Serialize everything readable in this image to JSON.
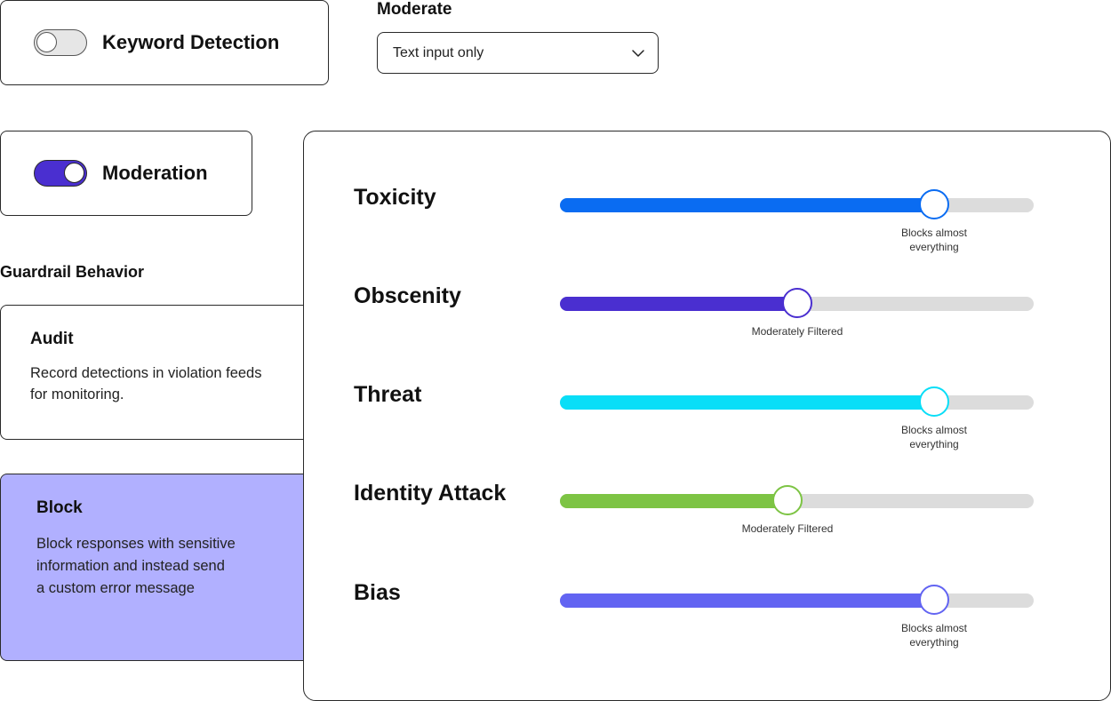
{
  "keyword_detection": {
    "label": "Keyword Detection",
    "enabled": false
  },
  "moderation_toggle": {
    "label": "Moderation",
    "enabled": true
  },
  "moderate": {
    "label": "Moderate",
    "selected": "Text input only"
  },
  "guardrail": {
    "heading": "Guardrail Behavior",
    "options": [
      {
        "title": "Audit",
        "description": "Record detections in violation feeds\nfor monitoring.",
        "selected": false
      },
      {
        "title": "Block",
        "description": "Block responses with sensitive\ninformation and instead send\na custom error message",
        "selected": true
      }
    ]
  },
  "moderation_sliders": [
    {
      "name": "Toxicity",
      "level": 0.79,
      "caption": "Blocks almost\neverything",
      "color": "#0a6cf2"
    },
    {
      "name": "Obscenity",
      "level": 0.5,
      "caption": "Moderately Filtered",
      "color": "#4a2fd0"
    },
    {
      "name": "Threat",
      "level": 0.79,
      "caption": "Blocks almost\neverything",
      "color": "#09def7"
    },
    {
      "name": "Identity Attack",
      "level": 0.48,
      "caption": "Moderately Filtered",
      "color": "#7dc444"
    },
    {
      "name": "Bias",
      "level": 0.79,
      "caption": "Blocks almost\neverything",
      "color": "#6264f2"
    }
  ],
  "colors": {
    "accent": "#4a2fd0",
    "block_selected_bg": "#b1b0ff",
    "track": "#dcdcdc"
  }
}
